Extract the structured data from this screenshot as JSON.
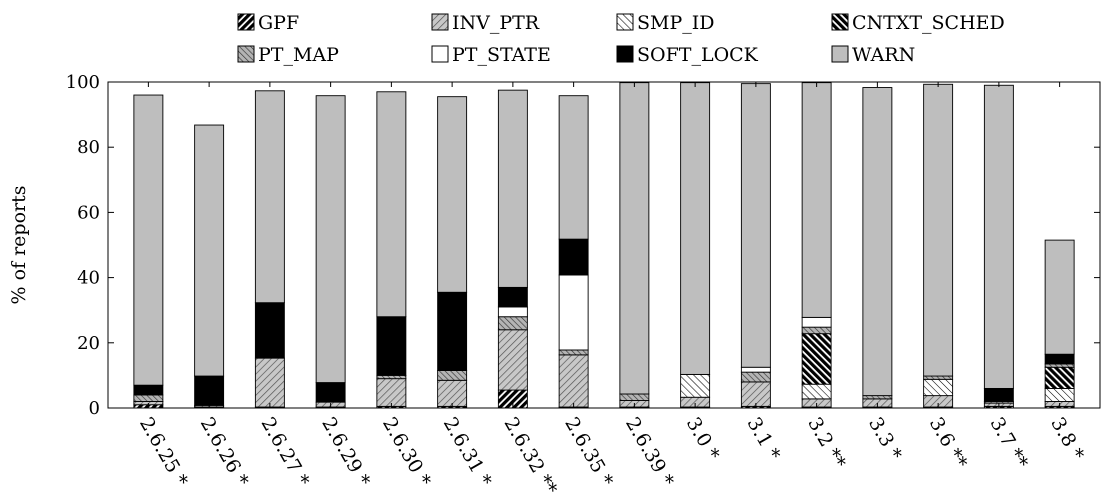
{
  "chart_data": {
    "type": "bar",
    "stacked": true,
    "ylabel": "% of reports",
    "ylim": [
      0,
      100
    ],
    "y_ticks": [
      0,
      20,
      40,
      60,
      80,
      100
    ],
    "grid": false,
    "legend_position": "top-center",
    "categories": [
      "2.6.25 *",
      "2.6.26 *",
      "2.6.27 *",
      "2.6.29 *",
      "2.6.30 *",
      "2.6.31 *",
      "2.6.32 **",
      "2.6.35 *",
      "2.6.39 *",
      "3.0 *",
      "3.1 *",
      "3.2 **",
      "3.3 *",
      "3.6 **",
      "3.7 **",
      "3.8 *"
    ],
    "series": [
      {
        "name": "GPF",
        "pattern": "hatch-dense-ne",
        "values": [
          1,
          0.3,
          0.3,
          0.3,
          0.5,
          0.5,
          5.5,
          0.3,
          0.3,
          0.3,
          0.5,
          0.3,
          0.3,
          0.3,
          0.5,
          0.5
        ]
      },
      {
        "name": "INV_PTR",
        "pattern": "hatch-ne",
        "values": [
          1,
          0.5,
          15,
          1.5,
          8.5,
          8,
          18.5,
          16,
          2,
          3,
          7.5,
          2.5,
          2.5,
          3.5,
          1,
          1.5
        ]
      },
      {
        "name": "SMP_ID",
        "pattern": "hatch-nw",
        "values": [
          0,
          0,
          0,
          0,
          0,
          0,
          0,
          0,
          0,
          7,
          0,
          4.5,
          0,
          5,
          0,
          4
        ]
      },
      {
        "name": "CNTXT_SCHED",
        "pattern": "hatch-dense-nw",
        "values": [
          0,
          0,
          0,
          0,
          0,
          0,
          0,
          0,
          0,
          0,
          0,
          15.5,
          0,
          0,
          0,
          6.5
        ]
      },
      {
        "name": "PT_MAP",
        "pattern": "hatch-nw-gray",
        "values": [
          2,
          0,
          0,
          0,
          1,
          3,
          4,
          1.5,
          2,
          0,
          3,
          2,
          1,
          1,
          0.5,
          1
        ]
      },
      {
        "name": "PT_STATE",
        "pattern": "white",
        "values": [
          0,
          0,
          0,
          0,
          0,
          0,
          3,
          23,
          0,
          0,
          1.5,
          3,
          0,
          0,
          0,
          0
        ]
      },
      {
        "name": "SOFT_LOCK",
        "pattern": "black",
        "values": [
          3,
          9,
          17,
          6,
          18,
          24,
          6,
          11,
          0,
          0,
          0,
          0,
          0,
          0,
          4,
          3
        ]
      },
      {
        "name": "WARN",
        "pattern": "gray",
        "values": [
          89,
          77,
          65,
          88,
          69,
          60,
          60.5,
          44,
          95.5,
          89.5,
          87,
          72,
          94.5,
          89.5,
          93,
          35
        ]
      }
    ]
  }
}
